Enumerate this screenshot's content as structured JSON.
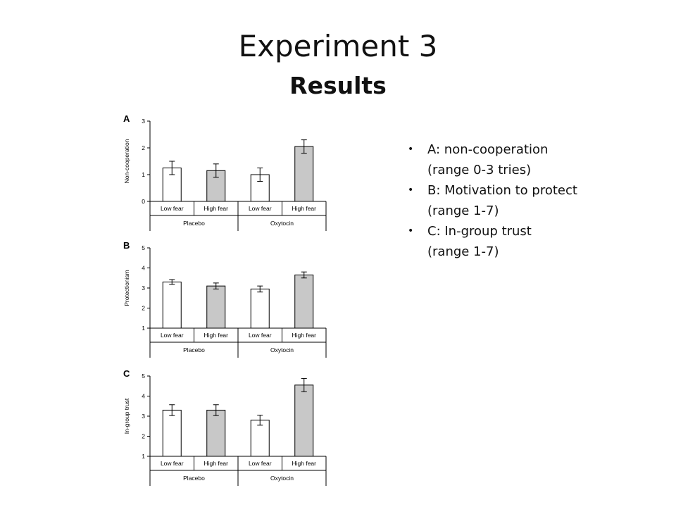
{
  "slide": {
    "title": "Experiment 3",
    "subtitle": "Results"
  },
  "notes": [
    {
      "main": "A: non-cooperation",
      "sub": "(range 0-3 tries)"
    },
    {
      "main": "B: Motivation to protect",
      "sub": "(range 1-7)"
    },
    {
      "main": "C: In-group trust",
      "sub": "(range 1-7)"
    }
  ],
  "chart_data": [
    {
      "type": "bar",
      "panel": "A",
      "ylabel": "Non-cooperation",
      "ylim": [
        0,
        3
      ],
      "yticks": [
        0,
        1,
        2,
        3
      ],
      "categories": [
        "Low fear",
        "High fear",
        "Low fear",
        "High fear"
      ],
      "groups": [
        "Placebo",
        "Oxytocin"
      ],
      "values": [
        1.25,
        1.15,
        1.0,
        2.05
      ],
      "errors": [
        0.25,
        0.25,
        0.25,
        0.25
      ],
      "fills": [
        "#ffffff",
        "#c8c8c8",
        "#ffffff",
        "#c8c8c8"
      ]
    },
    {
      "type": "bar",
      "panel": "B",
      "ylabel": "Protectionism",
      "ylim": [
        1,
        5
      ],
      "yticks": [
        1,
        2,
        3,
        4,
        5
      ],
      "categories": [
        "Low fear",
        "High fear",
        "Low fear",
        "High fear"
      ],
      "groups": [
        "Placebo",
        "Oxytocin"
      ],
      "values": [
        3.3,
        3.1,
        2.95,
        3.65
      ],
      "errors": [
        0.12,
        0.15,
        0.15,
        0.15
      ],
      "fills": [
        "#ffffff",
        "#c8c8c8",
        "#ffffff",
        "#c8c8c8"
      ]
    },
    {
      "type": "bar",
      "panel": "C",
      "ylabel": "In-group trust",
      "ylim": [
        1,
        5
      ],
      "yticks": [
        1,
        2,
        3,
        4,
        5
      ],
      "categories": [
        "Low fear",
        "High fear",
        "Low fear",
        "High fear"
      ],
      "groups": [
        "Placebo",
        "Oxytocin"
      ],
      "values": [
        3.3,
        3.3,
        2.8,
        4.55
      ],
      "errors": [
        0.27,
        0.27,
        0.25,
        0.33
      ],
      "fills": [
        "#ffffff",
        "#c8c8c8",
        "#ffffff",
        "#c8c8c8"
      ]
    }
  ]
}
